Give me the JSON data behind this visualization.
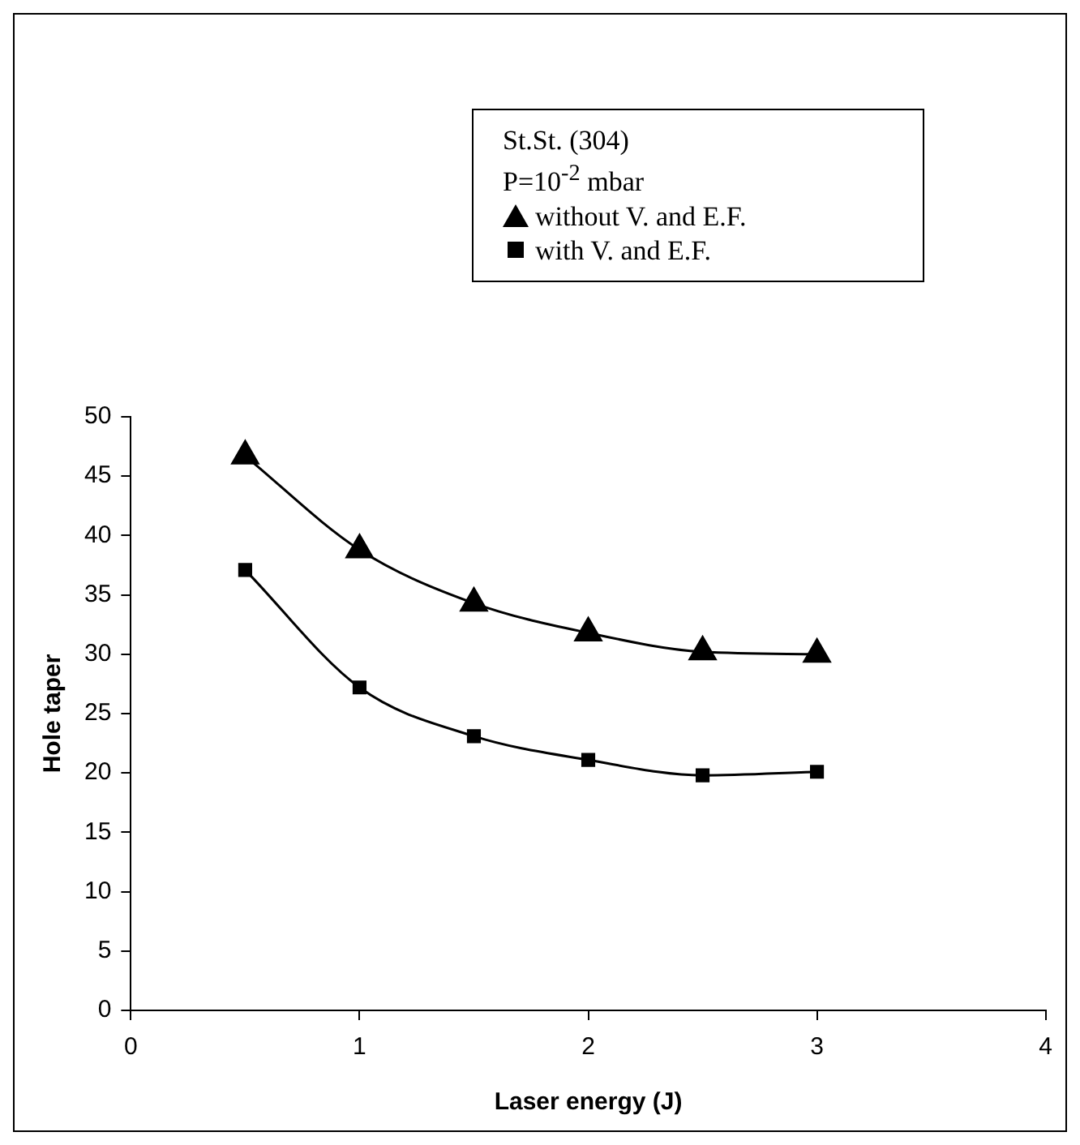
{
  "chart_data": {
    "type": "line",
    "xlabel": "Laser energy (J)",
    "ylabel": "Hole taper",
    "legend_title": "St.St. (304)",
    "annotations": [
      "P=10$^{-2}$ mbar"
    ],
    "x": [
      0.5,
      1,
      1.5,
      2,
      2.5,
      3
    ],
    "series": [
      {
        "name": "without V. and E.F.",
        "color": "#000000",
        "marker": "triangle",
        "values": [
          46.7,
          38.8,
          34.3,
          31.8,
          30.2,
          30.0
        ]
      },
      {
        "name": "with V. and E.F.",
        "color": "#000000",
        "marker": "square",
        "values": [
          37.1,
          27.2,
          23.1,
          21.1,
          19.8,
          20.1
        ]
      }
    ],
    "xlim": [
      0,
      4
    ],
    "xticks": [
      0,
      1,
      2,
      3,
      4
    ],
    "ylim": [
      0,
      50
    ],
    "yticks": [
      0,
      5,
      10,
      15,
      20,
      25,
      30,
      35,
      40,
      45,
      50
    ],
    "grid": false,
    "legend": "top right",
    "line_style": "solid"
  }
}
